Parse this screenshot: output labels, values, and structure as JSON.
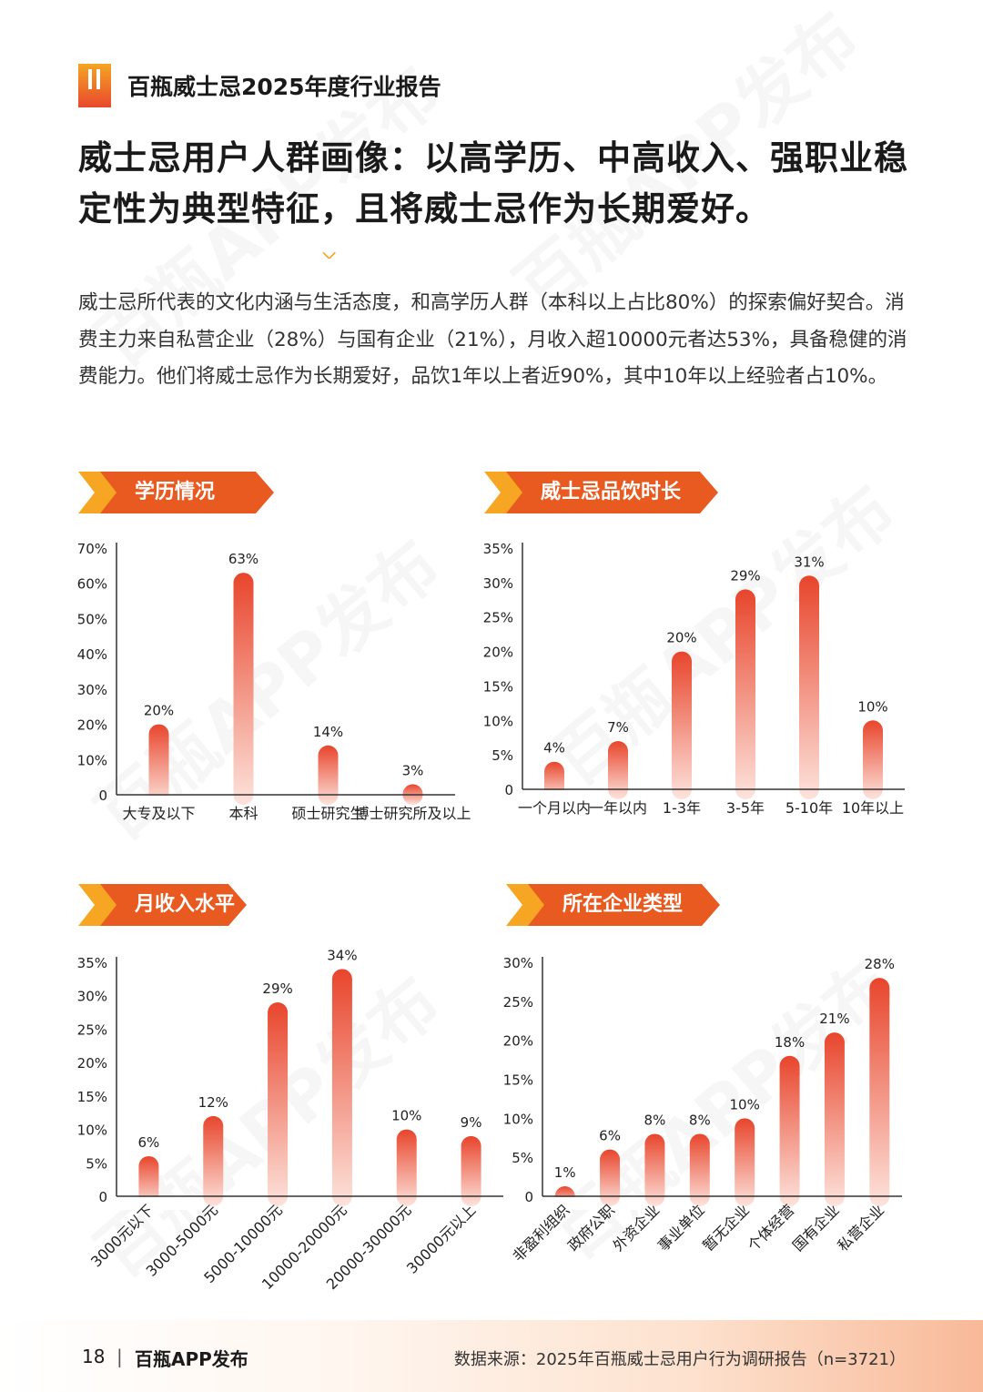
{
  "header": {
    "report_title": "百瓶威士忌2025年度行业报告"
  },
  "headline": {
    "line1": "威士忌用户人群画像：以高学历、中高收入、强职业稳",
    "line2": "定性为典型特征，且将威士忌作为长期爱好。"
  },
  "intro": "威士忌所代表的文化内涵与生活态度，和高学历人群（本科以上占比80%）的探索偏好契合。消费主力来自私营企业（28%）与国有企业（21%），月收入超10000元者达53%，具备稳健的消费能力。他们将威士忌作为长期爱好，品饮1年以上者近90%，其中10年以上经验者占10%。",
  "colors": {
    "bar_top": "#e8452c",
    "bar_bottom": "#fde3dc",
    "banner_dark": "#e95a20",
    "banner_light": "#f6a623",
    "axis": "#333333"
  },
  "chart_data": [
    {
      "type": "bar",
      "title": "学历情况",
      "categories": [
        "大专及以下",
        "本科",
        "硕士研究生",
        "博士研究所及以上"
      ],
      "values": [
        20,
        63,
        14,
        3
      ],
      "labels": [
        "20%",
        "63%",
        "14%",
        "3%"
      ],
      "ticks": [
        "0",
        "10%",
        "20%",
        "30%",
        "40%",
        "50%",
        "60%",
        "70%"
      ],
      "ylim": [
        0,
        70
      ],
      "rotate_labels": false
    },
    {
      "type": "bar",
      "title": "威士忌品饮时长",
      "categories": [
        "一个月以内",
        "一年以内",
        "1-3年",
        "3-5年",
        "5-10年",
        "10年以上"
      ],
      "values": [
        4,
        7,
        20,
        29,
        31,
        10
      ],
      "labels": [
        "4%",
        "7%",
        "20%",
        "29%",
        "31%",
        "10%"
      ],
      "ticks": [
        "0",
        "5%",
        "10%",
        "15%",
        "20%",
        "25%",
        "30%",
        "35%"
      ],
      "ylim": [
        0,
        35
      ],
      "rotate_labels": false
    },
    {
      "type": "bar",
      "title": "月收入水平",
      "categories": [
        "3000元以下",
        "3000-5000元",
        "5000-10000元",
        "10000-20000元",
        "20000-30000元",
        "30000元以上"
      ],
      "values": [
        6,
        12,
        29,
        34,
        10,
        9
      ],
      "labels": [
        "6%",
        "12%",
        "29%",
        "34%",
        "10%",
        "9%"
      ],
      "ticks": [
        "0",
        "5%",
        "10%",
        "15%",
        "20%",
        "25%",
        "30%",
        "35%"
      ],
      "ylim": [
        0,
        35
      ],
      "rotate_labels": true
    },
    {
      "type": "bar",
      "title": "所在企业类型",
      "categories": [
        "非盈利组织",
        "政府公职",
        "外资企业",
        "事业单位",
        "暂无企业",
        "个体经营",
        "国有企业",
        "私营企业"
      ],
      "values": [
        1,
        6,
        8,
        8,
        10,
        18,
        21,
        28
      ],
      "labels": [
        "1%",
        "6%",
        "8%",
        "8%",
        "10%",
        "18%",
        "21%",
        "28%"
      ],
      "ticks": [
        "0",
        "5%",
        "10%",
        "15%",
        "20%",
        "25%",
        "30%"
      ],
      "ylim": [
        0,
        30
      ],
      "rotate_labels": true
    }
  ],
  "footer": {
    "page_number": "18",
    "separator": "|",
    "publisher": "百瓶APP发布",
    "source": "数据来源：2025年百瓶威士忌用户行为调研报告（n=3721）"
  },
  "watermarks": [
    "百瓶APP发布",
    "百瓶APP发布",
    "百瓶APP发布",
    "百瓶APP发布",
    "百瓶APP发布",
    "百瓶APP发布"
  ]
}
